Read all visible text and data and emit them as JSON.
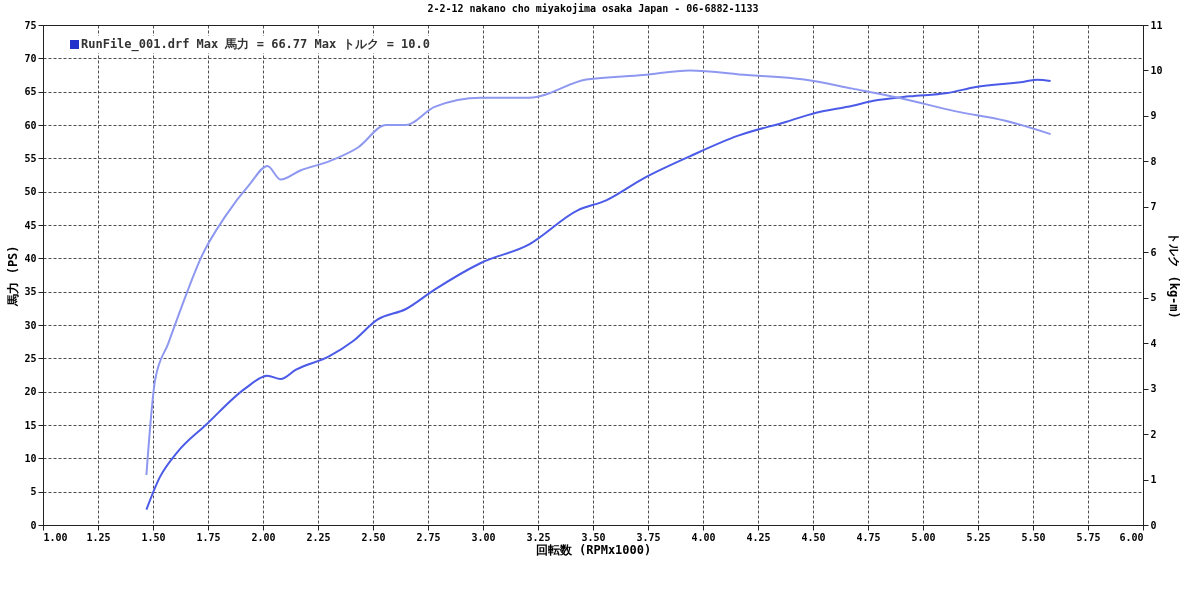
{
  "chart_data": {
    "type": "line",
    "title": "2-2-12 nakano cho miyakojima osaka Japan - 06-6882-1133",
    "xlabel": "回転数 (RPMx1000)",
    "ylabel": "馬力 (PS)",
    "y2label": "トルク (kg-m)",
    "annotations": [
      "RunFile_001.drf Max 馬力 = 66.77   Max トルク = 10.0"
    ],
    "xlim": [
      1,
      6
    ],
    "xticks": [
      {
        "value": 1,
        "label": "1.00"
      },
      1.25,
      {
        "value": 1.5,
        "label": "1.50"
      },
      1.75,
      {
        "value": 2,
        "label": "2.00"
      },
      2.25,
      {
        "value": 2.5,
        "label": "2.50"
      },
      2.75,
      {
        "value": 3,
        "label": "3.00"
      },
      3.25,
      {
        "value": 3.5,
        "label": "3.50"
      },
      3.75,
      {
        "value": 4,
        "label": "4.00"
      },
      4.25,
      {
        "value": 4.5,
        "label": "4.50"
      },
      4.75,
      {
        "value": 5,
        "label": "5.00"
      },
      5.25,
      {
        "value": 5.5,
        "label": "5.50"
      },
      5.75,
      {
        "value": 6,
        "label": "6.00"
      }
    ],
    "ylim": [
      0,
      75
    ],
    "yticks": [
      0,
      5,
      10,
      15,
      20,
      25,
      30,
      35,
      40,
      45,
      50,
      55,
      60,
      65,
      70,
      75
    ],
    "y2lim": [
      0,
      11
    ],
    "y2ticks": [
      0,
      1,
      2,
      3,
      4,
      5,
      6,
      7,
      8,
      9,
      10,
      11
    ],
    "grid": true,
    "series": [
      {
        "color": "#4b5be8",
        "axis": "y",
        "x": [
          1.47,
          1.53,
          1.61,
          1.74,
          1.92,
          2.02,
          2.08,
          2.15,
          2.3,
          2.41,
          2.52,
          2.65,
          2.78,
          2.99,
          3.21,
          3.43,
          3.56,
          3.73,
          3.94,
          4.16,
          4.38,
          4.51,
          4.68,
          4.77,
          4.94,
          5.11,
          5.24,
          5.46,
          5.52,
          5.58
        ],
        "values": [
          2.3,
          7.1,
          10.9,
          15,
          20.5,
          22.4,
          21.9,
          23.3,
          25.3,
          27.6,
          30.8,
          32.4,
          35.3,
          39.3,
          42.1,
          47.2,
          48.7,
          52,
          55.3,
          58.4,
          60.5,
          61.8,
          62.9,
          63.6,
          64.3,
          64.8,
          65.7,
          66.5,
          66.8,
          66.6
        ]
      },
      {
        "color": "#8f98f0",
        "axis": "y2",
        "x": [
          1.47,
          1.51,
          1.57,
          1.63,
          1.72,
          1.83,
          1.94,
          2.02,
          2.08,
          2.17,
          2.3,
          2.43,
          2.56,
          2.65,
          2.78,
          2.99,
          3.21,
          3.47,
          3.73,
          3.94,
          4.2,
          4.46,
          4.68,
          4.89,
          5.15,
          5.37,
          5.58
        ],
        "values": [
          1.1,
          3.2,
          4.0,
          4.8,
          5.9,
          6.8,
          7.5,
          7.9,
          7.6,
          7.8,
          8.0,
          8.3,
          8.8,
          8.8,
          9.2,
          9.4,
          9.4,
          9.8,
          9.9,
          10.0,
          9.9,
          9.8,
          9.6,
          9.4,
          9.1,
          8.9,
          8.6
        ]
      }
    ]
  }
}
